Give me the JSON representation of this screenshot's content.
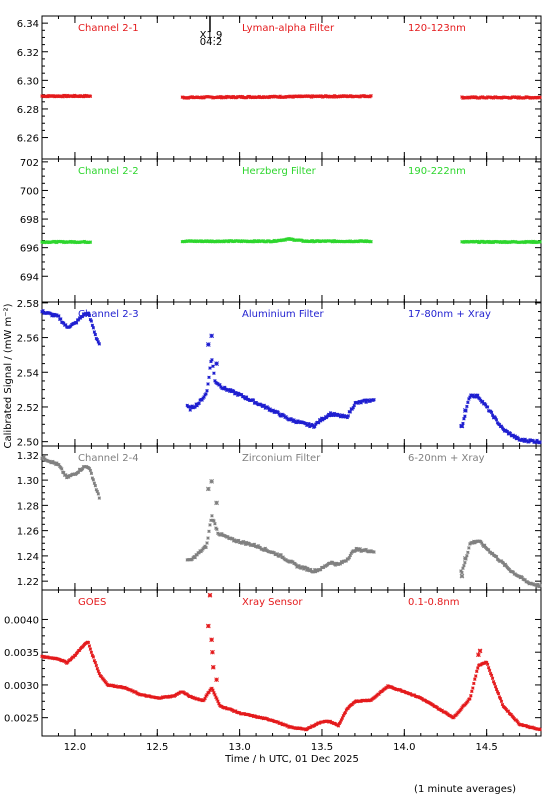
{
  "xlabel": "Time / h UTC, 01 Dec 2025",
  "ylabel": "Calibrated Signal / (mW m⁻²)",
  "footnote": "(1 minute averages)",
  "flare_marker": {
    "x": 12.82,
    "labels": [
      "X1.9",
      "04:2"
    ]
  },
  "colors": {
    "red": "#e41a1c",
    "green": "#2ed62e",
    "blue": "#1f1fd0",
    "grey": "#808080"
  },
  "chart_data": [
    {
      "type": "scatter",
      "name": "Channel 2-1",
      "filter": "Lyman-alpha Filter",
      "band": "120-123nm",
      "color": "#e41a1c",
      "xlim": [
        11.8,
        14.83
      ],
      "ylim": [
        6.245,
        6.345
      ],
      "xticks": [
        12.0,
        12.5,
        13.0,
        13.5,
        14.0,
        14.5
      ],
      "yticks": [
        6.26,
        6.28,
        6.3,
        6.32,
        6.34
      ],
      "ytick_labels": [
        "6.26",
        "6.28",
        "6.30",
        "6.32",
        "6.34"
      ],
      "points": [
        [
          11.8,
          6.289
        ],
        [
          12.1,
          6.289
        ],
        [
          12.65,
          6.288
        ],
        [
          13.2,
          6.2885
        ],
        [
          13.8,
          6.289
        ],
        [
          14.35,
          6.288
        ],
        [
          14.83,
          6.288
        ]
      ],
      "gaps": [
        [
          12.1,
          12.65
        ],
        [
          13.8,
          14.35
        ]
      ],
      "noise": 0.0005,
      "tagcolor": "#e41a1c"
    },
    {
      "type": "scatter",
      "name": "Channel 2-2",
      "filter": "Herzberg Filter",
      "band": "190-222nm",
      "color": "#2ed62e",
      "xlim": [
        11.8,
        14.83
      ],
      "ylim": [
        692.2,
        702.2
      ],
      "xticks": [
        12.0,
        12.5,
        13.0,
        13.5,
        14.0,
        14.5
      ],
      "yticks": [
        694,
        696,
        698,
        700,
        702
      ],
      "ytick_labels": [
        "694",
        "696",
        "698",
        "700",
        "702"
      ],
      "points": [
        [
          11.8,
          696.4
        ],
        [
          12.1,
          696.4
        ],
        [
          12.65,
          696.45
        ],
        [
          13.2,
          696.45
        ],
        [
          13.3,
          696.6
        ],
        [
          13.4,
          696.45
        ],
        [
          13.8,
          696.45
        ],
        [
          14.35,
          696.4
        ],
        [
          14.83,
          696.4
        ]
      ],
      "gaps": [
        [
          12.1,
          12.65
        ],
        [
          13.8,
          14.35
        ]
      ],
      "noise": 0.04,
      "tagcolor": "#2ed62e"
    },
    {
      "type": "scatter",
      "name": "Channel 2-3",
      "filter": "Aluminium Filter",
      "band": "17-80nm + Xray",
      "color": "#1f1fd0",
      "xlim": [
        11.8,
        14.83
      ],
      "ylim": [
        2.4975,
        2.5805
      ],
      "xticks": [
        12.0,
        12.5,
        13.0,
        13.5,
        14.0,
        14.5
      ],
      "yticks": [
        2.5,
        2.52,
        2.54,
        2.56,
        2.58
      ],
      "ytick_labels": [
        "2.50",
        "2.52",
        "2.54",
        "2.56",
        "2.58"
      ],
      "points": [
        [
          11.8,
          2.575
        ],
        [
          11.9,
          2.572
        ],
        [
          11.95,
          2.566
        ],
        [
          12.0,
          2.568
        ],
        [
          12.05,
          2.573
        ],
        [
          12.08,
          2.574
        ],
        [
          12.1,
          2.569
        ],
        [
          12.13,
          2.56
        ],
        [
          12.15,
          2.556
        ],
        [
          12.7,
          2.519
        ],
        [
          12.75,
          2.522
        ],
        [
          12.8,
          2.528
        ],
        [
          12.83,
          2.549
        ],
        [
          12.85,
          2.535
        ],
        [
          12.9,
          2.531
        ],
        [
          13.0,
          2.527
        ],
        [
          13.2,
          2.518
        ],
        [
          13.3,
          2.513
        ],
        [
          13.4,
          2.51
        ],
        [
          13.45,
          2.509
        ],
        [
          13.5,
          2.513
        ],
        [
          13.55,
          2.516
        ],
        [
          13.6,
          2.515
        ],
        [
          13.65,
          2.514
        ],
        [
          13.7,
          2.522
        ],
        [
          13.8,
          2.524
        ],
        [
          14.35,
          2.509
        ],
        [
          14.4,
          2.527
        ],
        [
          14.45,
          2.526
        ],
        [
          14.5,
          2.52
        ],
        [
          14.6,
          2.507
        ],
        [
          14.7,
          2.501
        ],
        [
          14.83,
          2.5
        ]
      ],
      "gaps": [
        [
          12.15,
          12.68
        ],
        [
          13.82,
          14.34
        ]
      ],
      "noise": 0.0008,
      "spikes": [
        [
          12.83,
          2.561
        ],
        [
          12.81,
          2.556
        ],
        [
          12.86,
          2.545
        ],
        [
          14.35,
          2.509
        ],
        [
          14.37,
          2.518
        ]
      ],
      "tagcolor": "#1f1fd0"
    },
    {
      "type": "scatter",
      "name": "Channel 2-4",
      "filter": "Zirconium Filter",
      "band": "6-20nm + Xray",
      "color": "#808080",
      "xlim": [
        11.8,
        14.83
      ],
      "ylim": [
        1.213,
        1.327
      ],
      "xticks": [
        12.0,
        12.5,
        13.0,
        13.5,
        14.0,
        14.5
      ],
      "yticks": [
        1.22,
        1.24,
        1.26,
        1.28,
        1.3,
        1.32
      ],
      "ytick_labels": [
        "1.22",
        "1.24",
        "1.26",
        "1.28",
        "1.30",
        "1.32"
      ],
      "points": [
        [
          11.8,
          1.318
        ],
        [
          11.9,
          1.312
        ],
        [
          11.95,
          1.302
        ],
        [
          12.0,
          1.305
        ],
        [
          12.05,
          1.31
        ],
        [
          12.08,
          1.311
        ],
        [
          12.1,
          1.305
        ],
        [
          12.13,
          1.293
        ],
        [
          12.15,
          1.285
        ],
        [
          12.7,
          1.236
        ],
        [
          12.75,
          1.242
        ],
        [
          12.8,
          1.248
        ],
        [
          12.83,
          1.272
        ],
        [
          12.87,
          1.258
        ],
        [
          12.95,
          1.253
        ],
        [
          13.1,
          1.248
        ],
        [
          13.25,
          1.24
        ],
        [
          13.35,
          1.232
        ],
        [
          13.45,
          1.228
        ],
        [
          13.5,
          1.23
        ],
        [
          13.55,
          1.235
        ],
        [
          13.6,
          1.233
        ],
        [
          13.65,
          1.237
        ],
        [
          13.7,
          1.245
        ],
        [
          13.8,
          1.244
        ],
        [
          14.35,
          1.227
        ],
        [
          14.4,
          1.25
        ],
        [
          14.45,
          1.252
        ],
        [
          14.55,
          1.24
        ],
        [
          14.65,
          1.228
        ],
        [
          14.75,
          1.219
        ],
        [
          14.83,
          1.216
        ]
      ],
      "gaps": [
        [
          12.15,
          12.68
        ],
        [
          13.82,
          14.34
        ]
      ],
      "noise": 0.001,
      "spikes": [
        [
          12.83,
          1.299
        ],
        [
          12.81,
          1.293
        ],
        [
          12.86,
          1.282
        ],
        [
          14.35,
          1.224
        ],
        [
          14.37,
          1.238
        ]
      ],
      "tagcolor": "#808080"
    },
    {
      "type": "scatter",
      "name": "GOES",
      "filter": "Xray Sensor",
      "band": "0.1-0.8nm",
      "color": "#e41a1c",
      "xlim": [
        11.8,
        14.83
      ],
      "ylim": [
        0.00222,
        0.00445
      ],
      "xticks": [
        12.0,
        12.5,
        13.0,
        13.5,
        14.0,
        14.5
      ],
      "yticks": [
        0.0025,
        0.003,
        0.0035,
        0.004
      ],
      "ytick_labels": [
        "0.0025",
        "0.0030",
        "0.0035",
        "0.0040"
      ],
      "points": [
        [
          11.8,
          0.00343
        ],
        [
          11.9,
          0.0034
        ],
        [
          11.95,
          0.00334
        ],
        [
          12.0,
          0.00345
        ],
        [
          12.05,
          0.0036
        ],
        [
          12.08,
          0.00366
        ],
        [
          12.1,
          0.0035
        ],
        [
          12.15,
          0.00316
        ],
        [
          12.2,
          0.003
        ],
        [
          12.3,
          0.00296
        ],
        [
          12.4,
          0.00285
        ],
        [
          12.5,
          0.0028
        ],
        [
          12.6,
          0.00283
        ],
        [
          12.65,
          0.0029
        ],
        [
          12.7,
          0.00282
        ],
        [
          12.78,
          0.00276
        ],
        [
          12.83,
          0.00296
        ],
        [
          12.88,
          0.00268
        ],
        [
          12.95,
          0.00262
        ],
        [
          13.0,
          0.00257
        ],
        [
          13.2,
          0.00246
        ],
        [
          13.3,
          0.00236
        ],
        [
          13.4,
          0.00232
        ],
        [
          13.45,
          0.00238
        ],
        [
          13.5,
          0.00244
        ],
        [
          13.55,
          0.00244
        ],
        [
          13.6,
          0.00238
        ],
        [
          13.65,
          0.00262
        ],
        [
          13.7,
          0.00275
        ],
        [
          13.8,
          0.00277
        ],
        [
          13.9,
          0.00298
        ],
        [
          14.0,
          0.0029
        ],
        [
          14.1,
          0.0028
        ],
        [
          14.2,
          0.00265
        ],
        [
          14.3,
          0.0025
        ],
        [
          14.4,
          0.0028
        ],
        [
          14.45,
          0.0033
        ],
        [
          14.5,
          0.00335
        ],
        [
          14.55,
          0.003
        ],
        [
          14.6,
          0.00268
        ],
        [
          14.7,
          0.0024
        ],
        [
          14.83,
          0.00231
        ]
      ],
      "gaps": [],
      "noise": 8e-06,
      "spikes": [
        [
          12.82,
          0.00437
        ],
        [
          12.81,
          0.0039
        ],
        [
          12.83,
          0.00369
        ],
        [
          12.835,
          0.0035
        ],
        [
          12.84,
          0.00327
        ],
        [
          12.86,
          0.00308
        ],
        [
          14.45,
          0.00346
        ],
        [
          14.46,
          0.00352
        ]
      ],
      "tagcolor": "#e41a1c"
    }
  ]
}
